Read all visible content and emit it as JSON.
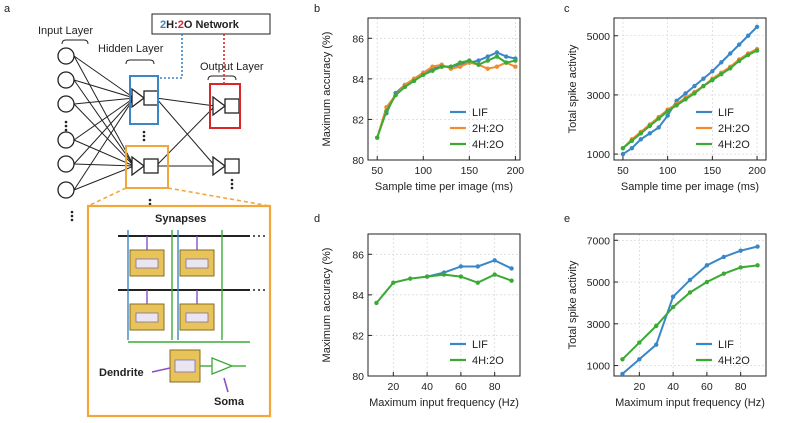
{
  "panel_labels": {
    "a": "a",
    "b": "b",
    "c": "c",
    "d": "d",
    "e": "e"
  },
  "diagram": {
    "input_layer": "Input Layer",
    "hidden_layer": "Hidden Layer",
    "output_layer": "Output Layer",
    "network_title_a": "2",
    "network_title_b": "H:",
    "network_title_c": "2",
    "network_title_d": "O Network",
    "synapses": "Synapses",
    "dendrite": "Dendrite",
    "soma": "Soma"
  },
  "colors": {
    "LIF": "#3a87c8",
    "2H:2O": "#f28a2e",
    "4H:2O": "#3aaa35",
    "hidden_box": "#3a87c8",
    "output_box": "#d9262b",
    "inset_box": "#f2a73b"
  },
  "chart_data": [
    {
      "panel": "b",
      "type": "line",
      "xlabel": "Sample time per image (ms)",
      "ylabel": "Maximum accuracy (%)",
      "xlim": [
        40,
        205
      ],
      "ylim": [
        80,
        87
      ],
      "xticks": [
        50,
        100,
        150,
        200
      ],
      "yticks": [
        80,
        82,
        84,
        86
      ],
      "legend": "bottom-right",
      "series": [
        {
          "name": "LIF",
          "x": [
            60,
            70,
            80,
            90,
            100,
            110,
            120,
            130,
            140,
            150,
            160,
            170,
            180,
            190,
            200
          ],
          "y": [
            82.3,
            83.3,
            83.7,
            84.0,
            84.3,
            84.5,
            84.6,
            84.6,
            84.7,
            84.8,
            84.9,
            85.1,
            85.3,
            85.1,
            85.0
          ]
        },
        {
          "name": "2H:2O",
          "x": [
            50,
            60,
            70,
            80,
            90,
            100,
            110,
            120,
            130,
            140,
            150,
            160,
            170,
            180,
            190,
            200
          ],
          "y": [
            81.1,
            82.6,
            83.2,
            83.7,
            84.0,
            84.3,
            84.6,
            84.7,
            84.5,
            84.6,
            84.8,
            84.7,
            84.5,
            84.6,
            84.8,
            84.6
          ]
        },
        {
          "name": "4H:2O",
          "x": [
            50,
            60,
            70,
            80,
            90,
            100,
            110,
            120,
            130,
            140,
            150,
            160,
            170,
            180,
            190,
            200
          ],
          "y": [
            81.1,
            82.4,
            83.2,
            83.6,
            83.9,
            84.2,
            84.4,
            84.6,
            84.6,
            84.8,
            84.9,
            84.7,
            84.9,
            85.1,
            84.8,
            84.9
          ]
        }
      ]
    },
    {
      "panel": "c",
      "type": "line",
      "xlabel": "Sample time per image (ms)",
      "ylabel": "Total spike activity",
      "xlim": [
        40,
        210
      ],
      "ylim": [
        800,
        5600
      ],
      "xticks": [
        50,
        100,
        150,
        200
      ],
      "yticks": [
        1000,
        3000,
        5000
      ],
      "legend": "bottom-right",
      "series": [
        {
          "name": "LIF",
          "x": [
            50,
            60,
            70,
            80,
            90,
            100,
            110,
            120,
            130,
            140,
            150,
            160,
            170,
            180,
            190,
            200
          ],
          "y": [
            1000,
            1200,
            1500,
            1700,
            1900,
            2300,
            2800,
            3050,
            3300,
            3550,
            3800,
            4100,
            4400,
            4700,
            5000,
            5300
          ]
        },
        {
          "name": "2H:2O",
          "x": [
            50,
            60,
            70,
            80,
            90,
            100,
            110,
            120,
            130,
            140,
            150,
            160,
            170,
            180,
            190,
            200
          ],
          "y": [
            1200,
            1500,
            1750,
            2000,
            2250,
            2500,
            2700,
            2900,
            3100,
            3300,
            3550,
            3750,
            3950,
            4200,
            4400,
            4550
          ]
        },
        {
          "name": "4H:2O",
          "x": [
            50,
            60,
            70,
            80,
            90,
            100,
            110,
            120,
            130,
            140,
            150,
            160,
            170,
            180,
            190,
            200
          ],
          "y": [
            1200,
            1450,
            1700,
            1950,
            2200,
            2450,
            2650,
            2850,
            3050,
            3300,
            3500,
            3700,
            3900,
            4150,
            4350,
            4500
          ]
        }
      ]
    },
    {
      "panel": "d",
      "type": "line",
      "xlabel": "Maximum input frequency (Hz)",
      "ylabel": "Maximum accuracy (%)",
      "xlim": [
        5,
        95
      ],
      "ylim": [
        80,
        87
      ],
      "xticks": [
        20,
        40,
        60,
        80
      ],
      "yticks": [
        80,
        82,
        84,
        86
      ],
      "legend": "bottom-right",
      "series": [
        {
          "name": "LIF",
          "x": [
            40,
            50,
            60,
            70,
            80,
            90
          ],
          "y": [
            84.9,
            85.1,
            85.4,
            85.4,
            85.7,
            85.3
          ]
        },
        {
          "name": "4H:2O",
          "x": [
            10,
            20,
            30,
            40,
            50,
            60,
            70,
            80,
            90
          ],
          "y": [
            83.6,
            84.6,
            84.8,
            84.9,
            85.0,
            84.9,
            84.6,
            85.0,
            84.7
          ]
        }
      ]
    },
    {
      "panel": "e",
      "type": "line",
      "xlabel": "Maximum input frequency (Hz)",
      "ylabel": "Total spike activity",
      "xlim": [
        5,
        95
      ],
      "ylim": [
        500,
        7300
      ],
      "xticks": [
        20,
        40,
        60,
        80
      ],
      "yticks": [
        1000,
        3000,
        5000,
        7000
      ],
      "legend": "bottom-right",
      "series": [
        {
          "name": "LIF",
          "x": [
            10,
            20,
            30,
            40,
            50,
            60,
            70,
            80,
            90
          ],
          "y": [
            600,
            1300,
            2000,
            4300,
            5100,
            5800,
            6200,
            6500,
            6700
          ]
        },
        {
          "name": "4H:2O",
          "x": [
            10,
            20,
            30,
            40,
            50,
            60,
            70,
            80,
            90
          ],
          "y": [
            1300,
            2100,
            2900,
            3800,
            4500,
            5000,
            5400,
            5700,
            5800
          ]
        }
      ]
    }
  ]
}
